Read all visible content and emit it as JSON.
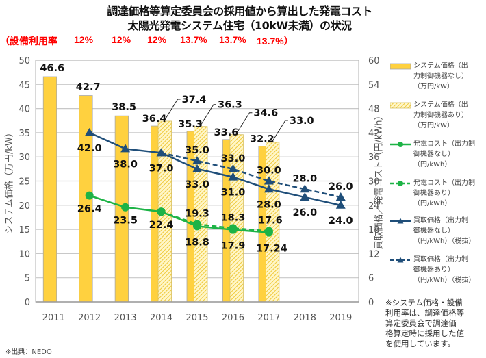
{
  "header": {
    "title_line1": "調達価格等算定委員会の採用値から算出した発電コスト",
    "title_line2": "太陽光発電システム住宅（10kW未満）の状況",
    "utilization_label": "（設備利用率",
    "utilization_values": [
      "12%",
      "12%",
      "12%",
      "13.7%",
      "13.7%",
      "13.7%）"
    ]
  },
  "chart_data": {
    "type": "bar",
    "title": "調達価格等算定委員会の採用値から算出した発電コスト 太陽光発電システム住宅（10kW未満）の状況",
    "categories": [
      "2011",
      "2012",
      "2013",
      "2014",
      "2015",
      "2016",
      "2017",
      "2018",
      "2019"
    ],
    "ylabel": "システム価格（万円/kW）",
    "ylabel_right": "買取価格／発電コスト（円/kWh）",
    "ylim": [
      0,
      50
    ],
    "ylim_right": [
      0,
      60
    ],
    "yticks": [
      0,
      5,
      10,
      15,
      20,
      25,
      30,
      35,
      40,
      45,
      50
    ],
    "yticks_right": [
      0,
      6,
      12,
      18,
      24,
      30,
      36,
      42,
      48,
      54,
      60
    ],
    "grid": true,
    "legend_position": "right",
    "series": [
      {
        "name": "システム価格（出力制御機器なし）（万円/kW）",
        "type": "bar",
        "axis": "left",
        "style": "solid",
        "color": "#FFD13F",
        "values": [
          46.6,
          42.7,
          38.5,
          36.4,
          35.3,
          33.6,
          32.2,
          null,
          null
        ]
      },
      {
        "name": "システム価格（出力制御機器あり）（万円/kW）",
        "type": "bar",
        "axis": "left",
        "style": "hatched",
        "color": "#F5D54A",
        "values": [
          null,
          null,
          null,
          37.4,
          36.3,
          34.6,
          33.0,
          null,
          null
        ]
      },
      {
        "name": "発電コスト（出力制御機器なし）（円/kWh）",
        "type": "line",
        "axis": "right",
        "style": "solid",
        "marker": "circle",
        "color": "#1DB346",
        "values": [
          null,
          26.4,
          23.5,
          22.4,
          18.8,
          17.9,
          17.24,
          null,
          null
        ]
      },
      {
        "name": "発電コスト（出力制御機器あり）（円/kWh）",
        "type": "line",
        "axis": "right",
        "style": "dashed",
        "marker": "circle",
        "color": "#1DB346",
        "values": [
          null,
          null,
          null,
          22.4,
          19.3,
          18.3,
          17.6,
          null,
          null
        ]
      },
      {
        "name": "買取価格（出力制御機器なし）（円/kWh）（税抜）",
        "type": "line",
        "axis": "right",
        "style": "solid",
        "marker": "triangle",
        "color": "#1F4E79",
        "values": [
          null,
          42.0,
          38.0,
          37.0,
          33.0,
          31.0,
          28.0,
          26.0,
          24.0
        ]
      },
      {
        "name": "買取価格（出力制御機器あり）（円/kWh）（税抜）",
        "type": "line",
        "axis": "right",
        "style": "dashed",
        "marker": "triangle",
        "color": "#1F4E79",
        "values": [
          null,
          null,
          null,
          37.0,
          35.0,
          33.0,
          30.0,
          28.0,
          26.0
        ]
      }
    ],
    "data_labels": {
      "bar_solid": [
        "46.6",
        "42.7",
        "38.5",
        "36.4",
        "35.3",
        "33.6",
        "32.2",
        null,
        null
      ],
      "bar_hatched": [
        null,
        null,
        null,
        "37.4",
        "36.3",
        "34.6",
        "33.0",
        null,
        null
      ],
      "cost_solid": [
        null,
        "26.4",
        "23.5",
        "22.4",
        "18.8",
        "17.9",
        "17.24",
        null,
        null
      ],
      "cost_dashed": [
        null,
        null,
        null,
        null,
        "19.3",
        "18.3",
        "17.6",
        null,
        null
      ],
      "fit_solid": [
        null,
        "42.0",
        "38.0",
        "37.0",
        "33.0",
        "31.0",
        "28.0",
        "26.0",
        "24.0"
      ],
      "fit_dashed": [
        null,
        null,
        null,
        null,
        "35.0",
        "33.0",
        "30.0",
        "28.0",
        "26.0"
      ]
    }
  },
  "legend": {
    "items": [
      {
        "label": "システム価格（出\n力制御機器なし）\n（万円/kW）",
        "symbol": "bar-solid"
      },
      {
        "label": "システム価格（出\n力制御機器あり）\n（万円/kW）",
        "symbol": "bar-hatched"
      },
      {
        "label": "発電コスト（出力制\n御機器なし）\n（円/kWh）",
        "symbol": "line-green-solid"
      },
      {
        "label": "発電コスト（出力制\n御機器あり）\n（円/kWh）",
        "symbol": "line-green-dashed"
      },
      {
        "label": "買取価格（出力制\n御機器なし）\n（円/kWh）（税抜）",
        "symbol": "line-blue-solid"
      },
      {
        "label": "買取価格（出力制\n御機器あり）\n（円/kWh）（税抜）",
        "symbol": "line-blue-dashed"
      }
    ]
  },
  "note": "※システム価格・設備\n利用率は、調達価格等\n算定委員会で調達価\n格算定時に採用した値\nを使用しています。",
  "source": "※出典：NEDO"
}
